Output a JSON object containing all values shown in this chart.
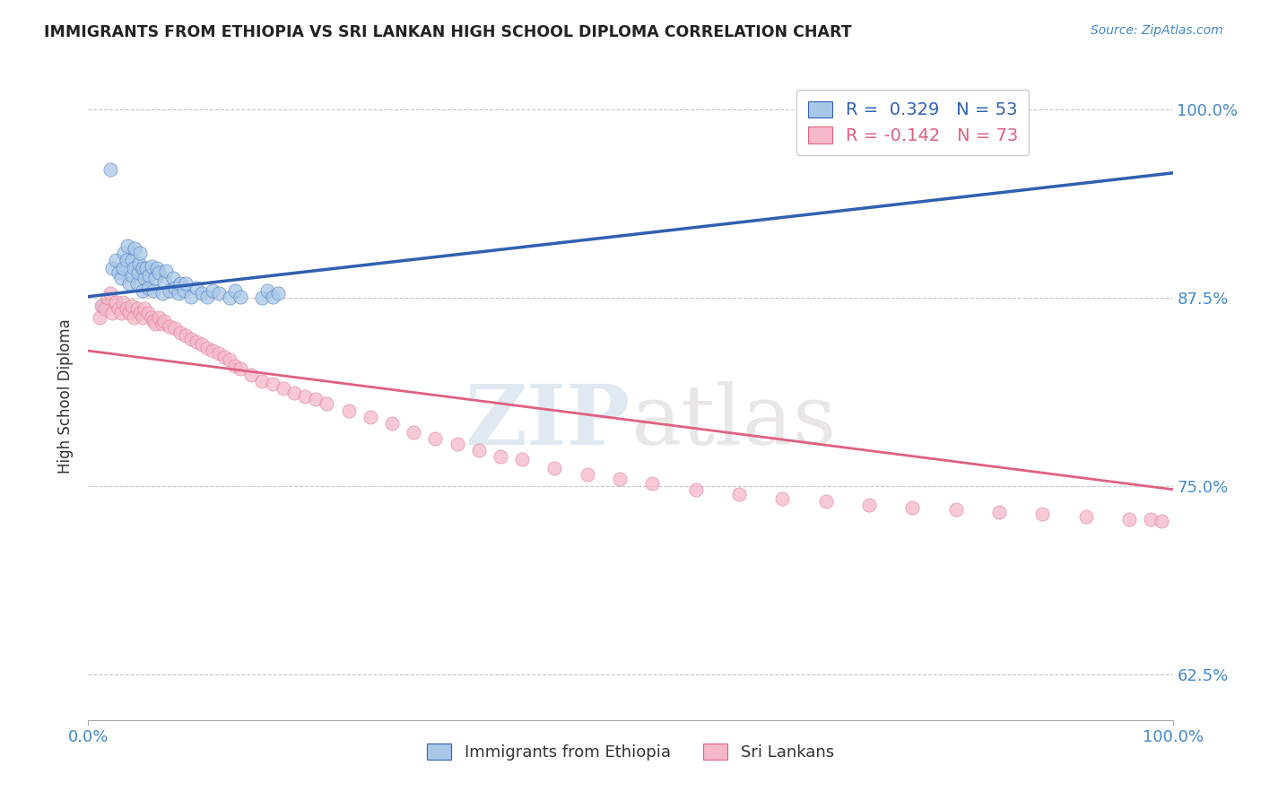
{
  "title": "IMMIGRANTS FROM ETHIOPIA VS SRI LANKAN HIGH SCHOOL DIPLOMA CORRELATION CHART",
  "source_text": "Source: ZipAtlas.com",
  "ylabel": "High School Diploma",
  "blue_color": "#a8c8e8",
  "pink_color": "#f4b8c8",
  "blue_line_color": "#3060b0",
  "pink_line_color": "#e06080",
  "watermark_color": "#d0dce8",
  "background_color": "#ffffff",
  "legend_bottom": [
    "Immigrants from Ethiopia",
    "Sri Lankans"
  ],
  "blue_points_x": [
    0.013,
    0.02,
    0.022,
    0.025,
    0.028,
    0.03,
    0.032,
    0.033,
    0.035,
    0.036,
    0.038,
    0.04,
    0.04,
    0.042,
    0.043,
    0.045,
    0.046,
    0.047,
    0.048,
    0.05,
    0.05,
    0.052,
    0.053,
    0.055,
    0.056,
    0.058,
    0.06,
    0.062,
    0.063,
    0.065,
    0.068,
    0.07,
    0.072,
    0.075,
    0.078,
    0.08,
    0.083,
    0.085,
    0.088,
    0.09,
    0.095,
    0.1,
    0.105,
    0.11,
    0.115,
    0.12,
    0.13,
    0.135,
    0.14,
    0.16,
    0.165,
    0.17,
    0.175
  ],
  "blue_points_y": [
    0.87,
    0.96,
    0.895,
    0.9,
    0.892,
    0.888,
    0.895,
    0.905,
    0.9,
    0.91,
    0.885,
    0.89,
    0.9,
    0.895,
    0.908,
    0.885,
    0.892,
    0.898,
    0.905,
    0.88,
    0.895,
    0.888,
    0.895,
    0.882,
    0.89,
    0.896,
    0.88,
    0.888,
    0.895,
    0.892,
    0.878,
    0.886,
    0.893,
    0.88,
    0.888,
    0.882,
    0.878,
    0.885,
    0.88,
    0.885,
    0.876,
    0.882,
    0.878,
    0.876,
    0.88,
    0.878,
    0.875,
    0.88,
    0.876,
    0.875,
    0.88,
    0.876,
    0.878
  ],
  "pink_points_x": [
    0.01,
    0.012,
    0.015,
    0.018,
    0.02,
    0.022,
    0.025,
    0.028,
    0.03,
    0.032,
    0.035,
    0.038,
    0.04,
    0.042,
    0.045,
    0.048,
    0.05,
    0.052,
    0.055,
    0.058,
    0.06,
    0.062,
    0.065,
    0.068,
    0.07,
    0.075,
    0.08,
    0.085,
    0.09,
    0.095,
    0.1,
    0.105,
    0.11,
    0.115,
    0.12,
    0.125,
    0.13,
    0.135,
    0.14,
    0.15,
    0.16,
    0.17,
    0.18,
    0.19,
    0.2,
    0.21,
    0.22,
    0.24,
    0.26,
    0.28,
    0.3,
    0.32,
    0.34,
    0.36,
    0.38,
    0.4,
    0.43,
    0.46,
    0.49,
    0.52,
    0.56,
    0.6,
    0.64,
    0.68,
    0.72,
    0.76,
    0.8,
    0.84,
    0.88,
    0.92,
    0.96,
    0.98,
    0.99
  ],
  "pink_points_y": [
    0.862,
    0.87,
    0.868,
    0.875,
    0.878,
    0.865,
    0.872,
    0.868,
    0.865,
    0.872,
    0.868,
    0.865,
    0.87,
    0.862,
    0.868,
    0.865,
    0.862,
    0.868,
    0.865,
    0.862,
    0.86,
    0.858,
    0.862,
    0.858,
    0.86,
    0.856,
    0.855,
    0.852,
    0.85,
    0.848,
    0.846,
    0.844,
    0.842,
    0.84,
    0.838,
    0.836,
    0.834,
    0.83,
    0.828,
    0.824,
    0.82,
    0.818,
    0.815,
    0.812,
    0.81,
    0.808,
    0.805,
    0.8,
    0.796,
    0.792,
    0.786,
    0.782,
    0.778,
    0.774,
    0.77,
    0.768,
    0.762,
    0.758,
    0.755,
    0.752,
    0.748,
    0.745,
    0.742,
    0.74,
    0.738,
    0.736,
    0.735,
    0.733,
    0.732,
    0.73,
    0.728,
    0.728,
    0.727
  ],
  "ylim_low": 0.595,
  "ylim_high": 1.025,
  "y_ticks": [
    0.625,
    0.75,
    0.875,
    1.0
  ],
  "y_tick_labels": [
    "62.5%",
    "75.0%",
    "87.5%",
    "100.0%"
  ],
  "x_tick_labels": [
    "0.0%",
    "100.0%"
  ]
}
